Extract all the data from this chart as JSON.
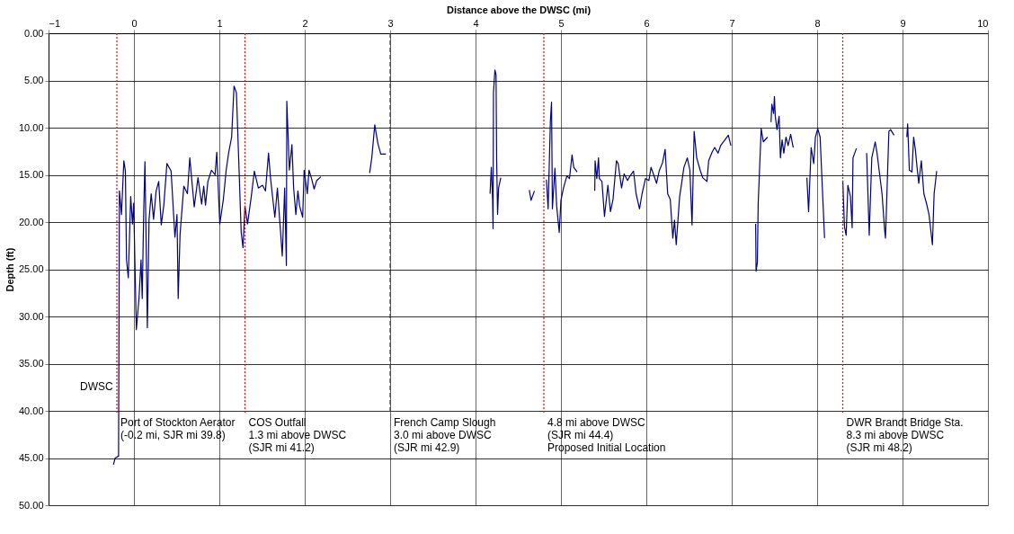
{
  "chart_data": {
    "type": "line",
    "xlabel": "Distance above the DWSC (mi)",
    "ylabel": "Depth (ft)",
    "xlim": [
      -1,
      10
    ],
    "xticks": [
      -1,
      0,
      1,
      2,
      3,
      4,
      5,
      6,
      7,
      8,
      9,
      10
    ],
    "ylim": [
      50,
      0
    ],
    "yticks": [
      {
        "value": 0,
        "label": "0.00"
      },
      {
        "value": 5,
        "label": "5.00"
      },
      {
        "value": 10,
        "label": "10.00"
      },
      {
        "value": 15,
        "label": "15.00"
      },
      {
        "value": 20,
        "label": "20.00"
      },
      {
        "value": 25,
        "label": "25.00"
      },
      {
        "value": 30,
        "label": "30.00"
      },
      {
        "value": 35,
        "label": "35.00"
      },
      {
        "value": 40,
        "label": "40.00"
      },
      {
        "value": 45,
        "label": "45.00"
      },
      {
        "value": 50,
        "label": "50.00"
      }
    ],
    "grid": true,
    "marker": "none",
    "line_style": "solid",
    "series": [
      {
        "color": "#000080",
        "x": [
          -0.24,
          -0.22,
          -0.18,
          -0.17,
          -0.146,
          -0.118,
          -0.1,
          -0.087,
          -0.066,
          -0.038,
          -0.017,
          -0.003,
          0.028,
          0.059,
          0.083,
          0.097,
          0.115,
          0.129,
          0.157,
          0.177,
          0.202,
          0.23,
          0.26,
          0.29,
          0.32,
          0.35,
          0.386,
          0.435,
          0.48,
          0.504,
          0.518,
          0.54,
          0.584,
          0.626,
          0.654,
          0.706,
          0.75,
          0.793,
          0.817,
          0.838,
          0.866,
          0.908,
          0.95,
          0.97,
          1.005,
          1.047,
          1.08,
          1.11,
          1.144,
          1.172,
          1.2,
          1.231,
          1.256,
          1.277,
          1.3,
          1.33,
          1.374,
          1.41,
          1.457,
          1.506,
          1.54,
          1.576,
          1.6,
          1.65,
          1.68,
          1.71,
          1.737,
          1.765,
          1.785,
          1.79,
          1.82,
          1.85,
          1.87,
          1.896,
          1.92,
          1.94,
          1.976,
          1.993,
          2.03,
          2.05,
          2.08,
          2.11,
          2.14,
          2.19,
          2.5,
          2.76,
          2.785,
          2.82,
          2.855,
          2.89,
          2.95,
          3.5,
          4.17,
          4.185,
          4.2,
          4.205,
          4.21,
          4.227,
          4.24,
          4.247,
          4.258,
          4.27,
          4.296,
          4.5,
          4.63,
          4.65,
          4.69,
          4.75,
          4.83,
          4.85,
          4.876,
          4.89,
          4.9,
          4.93,
          4.95,
          4.98,
          5.0,
          5.03,
          5.07,
          5.1,
          5.13,
          5.15,
          5.19,
          5.3,
          5.396,
          5.4,
          5.42,
          5.44,
          5.45,
          5.48,
          5.51,
          5.55,
          5.58,
          5.61,
          5.65,
          5.67,
          5.71,
          5.74,
          5.78,
          5.81,
          5.85,
          5.88,
          5.92,
          5.95,
          5.99,
          6.03,
          6.055,
          6.09,
          6.12,
          6.15,
          6.19,
          6.22,
          6.25,
          6.28,
          6.31,
          6.33,
          6.35,
          6.39,
          6.41,
          6.44,
          6.48,
          6.51,
          6.535,
          6.56,
          6.59,
          6.63,
          6.66,
          6.71,
          6.73,
          6.77,
          6.8,
          6.84,
          6.87,
          6.92,
          6.96,
          6.99,
          7.15,
          7.28,
          7.285,
          7.3,
          7.31,
          7.345,
          7.37,
          7.42,
          7.44,
          7.46,
          7.47,
          7.49,
          7.5,
          7.51,
          7.53,
          7.555,
          7.57,
          7.59,
          7.61,
          7.635,
          7.66,
          7.69,
          7.72,
          7.8,
          7.88,
          7.9,
          7.93,
          7.96,
          7.98,
          8.007,
          8.035,
          8.087,
          8.2,
          8.3,
          8.32,
          8.34,
          8.36,
          8.39,
          8.41,
          8.42,
          8.46,
          8.52,
          8.58,
          8.61,
          8.64,
          8.68,
          8.7,
          8.76,
          8.79,
          8.8,
          8.81,
          8.84,
          8.86,
          8.9,
          8.98,
          9.05,
          9.06,
          9.08,
          9.11,
          9.13,
          9.15,
          9.17,
          9.19,
          9.22,
          9.25,
          9.28,
          9.31,
          9.35,
          9.37,
          9.4
        ],
        "values": [
          45.7,
          45.0,
          44.8,
          16.7,
          19.2,
          13.5,
          14.6,
          24.0,
          25.9,
          17.3,
          20.2,
          18.0,
          31.4,
          28.1,
          24.0,
          28.1,
          18.6,
          13.6,
          31.2,
          19.7,
          17.0,
          19.7,
          16.7,
          15.7,
          20.3,
          18.2,
          13.8,
          14.6,
          21.6,
          19.2,
          28.1,
          21.3,
          16.2,
          17.0,
          13.2,
          18.4,
          15.3,
          18.1,
          16.2,
          18.2,
          15.7,
          14.5,
          15.0,
          12.6,
          20.2,
          17.6,
          14.5,
          12.6,
          11.0,
          5.6,
          6.3,
          14.5,
          21.1,
          22.7,
          18.3,
          20.2,
          17.3,
          14.6,
          16.4,
          16.1,
          16.7,
          12.7,
          15.4,
          19.5,
          16.4,
          20.2,
          23.6,
          16.4,
          24.6,
          7.2,
          14.5,
          11.8,
          16.4,
          19.2,
          16.7,
          18.3,
          19.5,
          14.5,
          17.0,
          14.5,
          15.4,
          16.5,
          15.6,
          15.2,
          null,
          14.8,
          13.2,
          9.7,
          11.6,
          12.8,
          12.8,
          null,
          17.0,
          14.2,
          17.7,
          20.7,
          6.3,
          3.9,
          4.4,
          13.2,
          19.2,
          16.4,
          15.3,
          null,
          16.6,
          17.7,
          16.7,
          null,
          15.5,
          18.6,
          9.4,
          7.3,
          18.6,
          14.3,
          18.3,
          21.1,
          17.7,
          16.4,
          15.1,
          15.4,
          12.9,
          14.2,
          14.7,
          null,
          16.7,
          13.5,
          15.4,
          13.2,
          15.4,
          15.7,
          19.4,
          16.1,
          18.9,
          17.6,
          13.5,
          13.8,
          16.4,
          14.9,
          15.6,
          15.1,
          14.6,
          17.0,
          18.6,
          17.0,
          15.4,
          15.6,
          14.2,
          15.1,
          15.9,
          14.6,
          13.7,
          12.3,
          17.0,
          17.6,
          21.7,
          19.8,
          22.4,
          17.3,
          16.1,
          14.2,
          13.2,
          14.5,
          20.3,
          10.4,
          13.2,
          14.5,
          15.3,
          15.7,
          13.5,
          12.6,
          12.1,
          12.7,
          11.9,
          11.3,
          10.8,
          11.9,
          null,
          20.2,
          25.2,
          24.3,
          18.0,
          10.1,
          11.5,
          11.0,
          null,
          9.4,
          7.5,
          8.5,
          6.7,
          8.8,
          10.2,
          8.8,
          13.2,
          11.3,
          12.7,
          11.0,
          11.9,
          10.7,
          12.1,
          null,
          15.3,
          18.9,
          12.1,
          13.8,
          11.0,
          10.1,
          11.0,
          21.7,
          null,
          15.6,
          20.5,
          21.4,
          16.1,
          17.3,
          20.6,
          13.2,
          12.2,
          null,
          12.7,
          21.4,
          13.2,
          11.5,
          12.6,
          17.0,
          20.8,
          21.7,
          19.1,
          10.4,
          10.2,
          10.8,
          null,
          11.0,
          9.6,
          14.5,
          14.7,
          11.0,
          12.3,
          14.2,
          15.9,
          13.5,
          17.0,
          18.0,
          19.2,
          22.4,
          17.0,
          14.6
        ]
      }
    ],
    "ref_lines": [
      {
        "axis": "x",
        "value": -0.2,
        "label": "Port of Stockton Aerator\n(-0.2 mi, SJR mi 39.8)",
        "color": "#ff0000",
        "line_style": "dotted"
      },
      {
        "axis": "x",
        "value": 1.3,
        "label": "COS Outfall\n1.3 mi above DWSC\n(SJR mi 41.2)",
        "color": "#ff0000",
        "line_style": "dotted"
      },
      {
        "axis": "x",
        "value": 3.0,
        "label": "French Camp Slough\n3.0 mi above DWSC\n(SJR mi 42.9)",
        "color": "#404040",
        "line_style": "dashed"
      },
      {
        "axis": "x",
        "value": 4.8,
        "label": "4.8 mi above DWSC\n(SJR mi 44.4)\nProposed Initial Location",
        "color": "#ff0000",
        "line_style": "dotted"
      },
      {
        "axis": "x",
        "value": 8.3,
        "label": "DWR Brandt Bridge Sta.\n8.3 mi above DWSC\n(SJR mi 48.2)",
        "color": "#ff0000",
        "line_style": "dotted"
      }
    ],
    "annotations": [
      "DWSC"
    ]
  }
}
